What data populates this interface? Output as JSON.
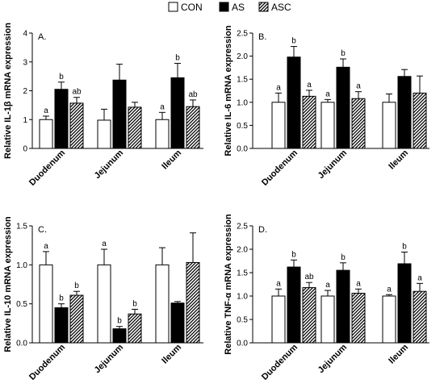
{
  "legend": [
    {
      "label": "CON",
      "fill": "white"
    },
    {
      "label": "AS",
      "fill": "black"
    },
    {
      "label": "ASC",
      "fill": "hatch"
    }
  ],
  "chart_data": [
    {
      "type": "bar",
      "panel_label": "A.",
      "ylabel": "Relative IL-1β mRNA expression",
      "categories": [
        "Duodenum",
        "Jejunum",
        "Ileum"
      ],
      "ylim": [
        0,
        4
      ],
      "yticks": [
        "0",
        "1",
        "2",
        "3",
        "4"
      ],
      "series": [
        {
          "name": "CON",
          "values": [
            1.0,
            0.98,
            1.0
          ],
          "errors": [
            0.12,
            0.38,
            0.25
          ],
          "letters": [
            "a",
            "",
            "a"
          ]
        },
        {
          "name": "AS",
          "values": [
            2.05,
            2.37,
            2.45
          ],
          "errors": [
            0.25,
            0.55,
            0.5
          ],
          "letters": [
            "b",
            "",
            "b"
          ]
        },
        {
          "name": "ASC",
          "values": [
            1.57,
            1.43,
            1.45
          ],
          "errors": [
            0.2,
            0.17,
            0.23
          ],
          "letters": [
            "ab",
            "",
            "ab"
          ]
        }
      ]
    },
    {
      "type": "bar",
      "panel_label": "B.",
      "ylabel": "Relative IL-6 mRNA expression",
      "categories": [
        "Duodenum",
        "Jejunum",
        "Ileum"
      ],
      "ylim": [
        0,
        2.5
      ],
      "yticks": [
        "0.0",
        "0.5",
        "1.0",
        "1.5",
        "2.0",
        "2.5"
      ],
      "series": [
        {
          "name": "CON",
          "values": [
            1.0,
            1.0,
            1.0
          ],
          "errors": [
            0.2,
            0.06,
            0.18
          ],
          "letters": [
            "a",
            "a",
            ""
          ]
        },
        {
          "name": "AS",
          "values": [
            1.98,
            1.76,
            1.56
          ],
          "errors": [
            0.23,
            0.18,
            0.15
          ],
          "letters": [
            "b",
            "b",
            ""
          ]
        },
        {
          "name": "ASC",
          "values": [
            1.13,
            1.08,
            1.2
          ],
          "errors": [
            0.13,
            0.15,
            0.37
          ],
          "letters": [
            "a",
            "a",
            ""
          ]
        }
      ]
    },
    {
      "type": "bar",
      "panel_label": "C.",
      "ylabel": "Relative IL-10 mRNA expression",
      "categories": [
        "Duodenum",
        "Jejunum",
        "Ileum"
      ],
      "ylim": [
        0,
        1.5
      ],
      "yticks": [
        "0.0",
        "0.5",
        "1.0",
        "1.5"
      ],
      "series": [
        {
          "name": "CON",
          "values": [
            1.0,
            1.0,
            1.0
          ],
          "errors": [
            0.17,
            0.2,
            0.22
          ],
          "letters": [
            "a",
            "a",
            ""
          ]
        },
        {
          "name": "AS",
          "values": [
            0.45,
            0.18,
            0.51
          ],
          "errors": [
            0.05,
            0.03,
            0.02
          ],
          "letters": [
            "b",
            "b",
            ""
          ]
        },
        {
          "name": "ASC",
          "values": [
            0.61,
            0.37,
            1.03
          ],
          "errors": [
            0.05,
            0.06,
            0.38
          ],
          "letters": [
            "b",
            "b",
            ""
          ]
        }
      ]
    },
    {
      "type": "bar",
      "panel_label": "D.",
      "ylabel": "Relative TNF-α mRNA expression",
      "categories": [
        "Duodenum",
        "Jejunum",
        "Ileum"
      ],
      "ylim": [
        0,
        2.5
      ],
      "yticks": [
        "0.0",
        "0.5",
        "1.0",
        "1.5",
        "2.0",
        "2.5"
      ],
      "series": [
        {
          "name": "CON",
          "values": [
            1.0,
            1.0,
            1.0
          ],
          "errors": [
            0.15,
            0.12,
            0.03
          ],
          "letters": [
            "a",
            "a",
            "a"
          ]
        },
        {
          "name": "AS",
          "values": [
            1.62,
            1.55,
            1.69
          ],
          "errors": [
            0.15,
            0.16,
            0.25
          ],
          "letters": [
            "b",
            "b",
            "b"
          ]
        },
        {
          "name": "ASC",
          "values": [
            1.18,
            1.06,
            1.1
          ],
          "errors": [
            0.11,
            0.09,
            0.17
          ],
          "letters": [
            "ab",
            "a",
            "a"
          ]
        }
      ]
    }
  ]
}
